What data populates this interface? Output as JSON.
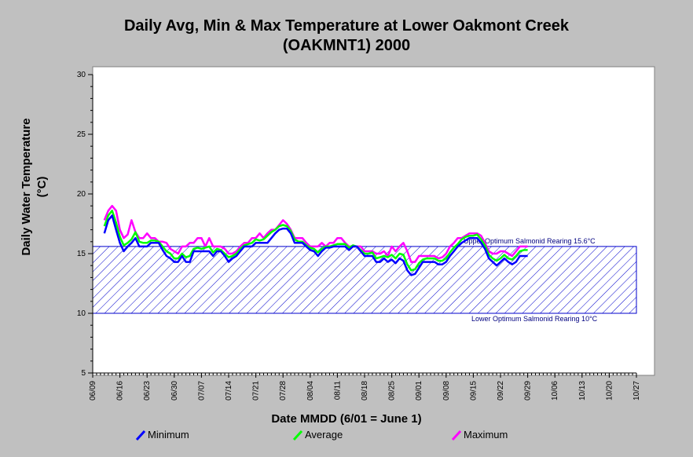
{
  "chart_data": {
    "type": "line",
    "title": "Daily Avg, Min & Max Temperature at Lower Oakmont Creek",
    "subtitle": "(OAKMNT1) 2000",
    "ylabel_line1": "Daily Water Temperature",
    "ylabel_line2": "(°C)",
    "xlabel": "Date MMDD (6/01 = June 1)",
    "ylim": [
      5,
      30
    ],
    "yticks": [
      "5",
      "10",
      "15",
      "20",
      "25",
      "30"
    ],
    "xticks": [
      "06/09",
      "06/16",
      "06/23",
      "06/30",
      "07/07",
      "07/14",
      "07/21",
      "07/28",
      "08/04",
      "08/11",
      "08/18",
      "08/25",
      "09/01",
      "09/08",
      "09/15",
      "09/22",
      "09/29",
      "10/06",
      "10/13",
      "10/20",
      "10/27"
    ],
    "x_day_range": [
      0,
      140
    ],
    "band": {
      "lower": 10,
      "upper": 15.6,
      "upper_label": "Upper Optimum Salmonid Rearing 15.6°C",
      "lower_label": "Lower Optimum Salmonid Rearing 10°C"
    },
    "colors": {
      "Minimum": "#0000ff",
      "Average": "#00ff00",
      "Maximum": "#ff00ff",
      "band": "#0000cc"
    },
    "x_start_day": 3,
    "series": [
      {
        "name": "Minimum",
        "values": [
          16.7,
          17.8,
          18.2,
          17.0,
          15.9,
          15.2,
          15.6,
          15.9,
          16.3,
          15.6,
          15.6,
          15.6,
          15.9,
          15.9,
          15.9,
          15.3,
          14.8,
          14.6,
          14.3,
          14.3,
          14.8,
          14.3,
          14.3,
          15.2,
          15.2,
          15.2,
          15.2,
          15.2,
          14.8,
          15.2,
          15.2,
          14.8,
          14.3,
          14.6,
          14.8,
          15.2,
          15.6,
          15.6,
          15.6,
          15.9,
          15.9,
          15.9,
          15.9,
          16.3,
          16.7,
          17.0,
          17.1,
          17.1,
          16.7,
          15.9,
          15.9,
          15.9,
          15.6,
          15.3,
          15.2,
          14.8,
          15.2,
          15.5,
          15.5,
          15.6,
          15.6,
          15.6,
          15.6,
          15.3,
          15.6,
          15.6,
          15.2,
          14.8,
          14.8,
          14.8,
          14.3,
          14.3,
          14.6,
          14.3,
          14.5,
          14.2,
          14.6,
          14.4,
          13.6,
          13.2,
          13.3,
          13.8,
          14.3,
          14.3,
          14.3,
          14.3,
          14.1,
          14.1,
          14.3,
          14.8,
          15.2,
          15.6,
          15.9,
          16.1,
          16.3,
          16.3,
          16.3,
          15.9,
          15.4,
          14.6,
          14.3,
          14.0,
          14.3,
          14.6,
          14.3,
          14.1,
          14.3,
          14.8,
          14.8,
          14.8
        ]
      },
      {
        "name": "Average",
        "values": [
          17.3,
          18.2,
          18.6,
          17.6,
          16.4,
          15.7,
          15.9,
          16.2,
          16.8,
          16.0,
          15.9,
          15.9,
          16.1,
          16.1,
          16.0,
          15.6,
          15.2,
          15.0,
          14.6,
          14.6,
          15.0,
          14.7,
          14.8,
          15.4,
          15.5,
          15.4,
          15.5,
          15.6,
          15.1,
          15.4,
          15.3,
          15.0,
          14.7,
          14.8,
          15.0,
          15.4,
          15.7,
          15.8,
          15.9,
          16.2,
          16.1,
          16.2,
          16.5,
          16.8,
          17.0,
          17.3,
          17.4,
          17.3,
          16.9,
          16.2,
          16.0,
          16.0,
          15.7,
          15.5,
          15.4,
          15.1,
          15.4,
          15.6,
          15.6,
          15.7,
          15.8,
          15.8,
          15.8,
          15.5,
          15.7,
          15.6,
          15.3,
          15.0,
          15.0,
          15.1,
          14.6,
          14.7,
          14.8,
          14.7,
          14.9,
          14.6,
          15.0,
          14.9,
          14.1,
          13.6,
          13.7,
          14.2,
          14.5,
          14.6,
          14.6,
          14.6,
          14.4,
          14.4,
          14.6,
          15.1,
          15.5,
          15.8,
          16.2,
          16.4,
          16.5,
          16.5,
          16.6,
          16.2,
          15.7,
          14.9,
          14.6,
          14.4,
          14.6,
          14.9,
          14.6,
          14.5,
          14.8,
          15.2,
          15.3,
          15.3
        ]
      },
      {
        "name": "Maximum",
        "values": [
          17.8,
          18.6,
          19.0,
          18.6,
          17.0,
          16.3,
          16.6,
          17.8,
          16.8,
          16.3,
          16.3,
          16.7,
          16.3,
          16.3,
          16.0,
          16.0,
          15.9,
          15.4,
          15.2,
          15.0,
          15.6,
          15.6,
          15.9,
          15.9,
          16.3,
          16.3,
          15.6,
          16.3,
          15.6,
          15.6,
          15.6,
          15.4,
          15.0,
          15.0,
          15.2,
          15.6,
          15.9,
          15.9,
          16.3,
          16.3,
          16.7,
          16.3,
          16.7,
          17.0,
          17.0,
          17.4,
          17.8,
          17.5,
          17.0,
          16.3,
          16.3,
          16.3,
          15.9,
          15.6,
          15.6,
          15.6,
          15.9,
          15.6,
          15.9,
          15.9,
          16.3,
          16.3,
          15.9,
          15.6,
          15.6,
          15.6,
          15.6,
          15.2,
          15.2,
          15.2,
          15.0,
          15.0,
          15.2,
          14.8,
          15.6,
          15.2,
          15.6,
          15.9,
          15.2,
          14.3,
          14.3,
          14.8,
          14.8,
          14.8,
          14.8,
          14.8,
          14.6,
          14.7,
          15.0,
          15.6,
          15.9,
          16.3,
          16.3,
          16.5,
          16.7,
          16.7,
          16.7,
          16.5,
          15.9,
          15.2,
          15.0,
          15.0,
          15.2,
          15.2,
          15.0,
          14.8,
          15.2,
          15.6,
          15.6,
          15.6
        ]
      }
    ],
    "grid": false,
    "legend_placement": "bottom"
  }
}
